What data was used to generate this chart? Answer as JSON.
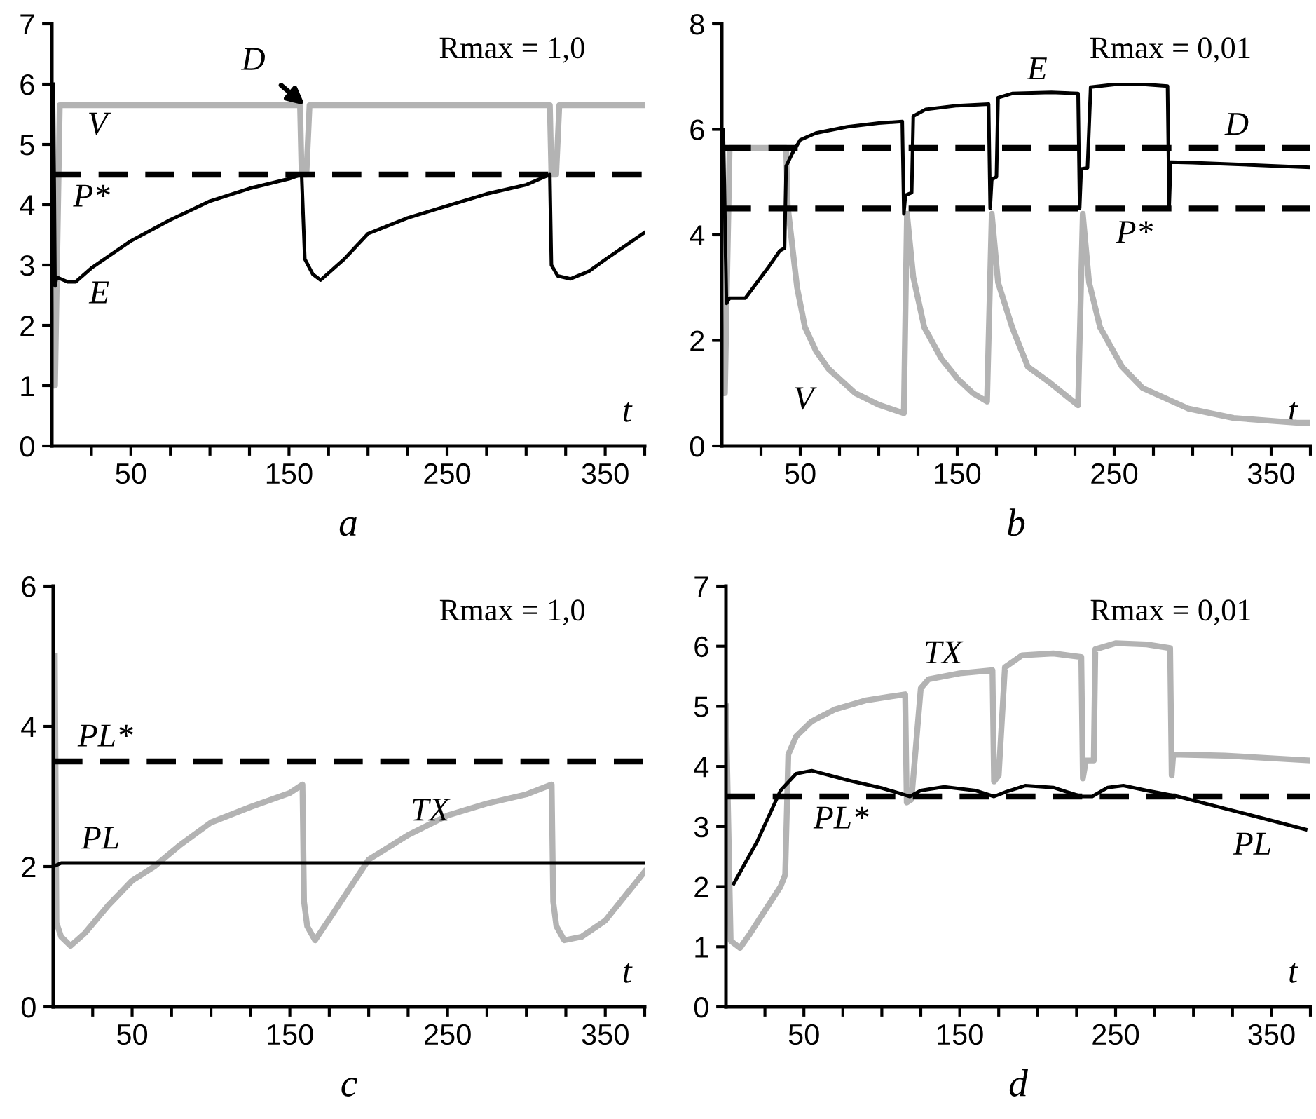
{
  "chart_data": [
    {
      "type": "line",
      "title": "a",
      "xlabel": "t",
      "xlim": [
        0,
        375
      ],
      "ylim": [
        0,
        7
      ],
      "xticks": [
        {
          "value": 25,
          "label": null
        },
        50,
        {
          "value": 75,
          "label": null
        },
        {
          "value": 100,
          "label": null
        },
        {
          "value": 125,
          "label": null
        },
        150,
        {
          "value": 175,
          "label": null
        },
        {
          "value": 200,
          "label": null
        },
        {
          "value": 225,
          "label": null
        },
        250,
        {
          "value": 275,
          "label": null
        },
        {
          "value": 300,
          "label": null
        },
        {
          "value": 325,
          "label": null
        },
        350,
        {
          "value": 375,
          "label": null
        }
      ],
      "yticks": [
        0,
        1,
        2,
        3,
        4,
        5,
        6,
        7
      ],
      "series": [
        {
          "name": "V",
          "color": "#b3b3b3",
          "x": [
            0,
            2,
            5,
            157,
            158,
            161,
            163,
            315,
            316,
            319,
            321,
            375
          ],
          "values": [
            1.0,
            1.0,
            5.65,
            5.65,
            4.5,
            4.5,
            5.65,
            5.65,
            4.5,
            4.5,
            5.65,
            5.65
          ]
        },
        {
          "name": "E",
          "color": "#000000",
          "x": [
            1,
            2,
            3,
            10,
            15,
            25,
            50,
            75,
            100,
            125,
            150,
            158,
            160,
            165,
            170,
            185,
            200,
            225,
            250,
            275,
            300,
            315,
            316,
            320,
            328,
            340,
            350,
            375
          ],
          "values": [
            6.0,
            2.65,
            2.8,
            2.72,
            2.72,
            2.95,
            3.4,
            3.75,
            4.06,
            4.27,
            4.43,
            4.5,
            3.1,
            2.85,
            2.75,
            3.1,
            3.52,
            3.78,
            3.98,
            4.18,
            4.33,
            4.5,
            3.0,
            2.82,
            2.77,
            2.9,
            3.09,
            3.54
          ]
        }
      ],
      "ref_lines": [
        {
          "axis": "y",
          "value": 4.5,
          "label": "P*",
          "color": "#000000",
          "line_style": "dashed"
        }
      ],
      "annotations": [
        "Rmax = 1,0",
        {
          "text": "D",
          "x": 160,
          "y": 5.65
        }
      ]
    },
    {
      "type": "line",
      "title": "b",
      "xlabel": "t",
      "xlim": [
        0,
        375
      ],
      "ylim": [
        0,
        8
      ],
      "xticks": [
        {
          "value": 25,
          "label": null
        },
        50,
        {
          "value": 75,
          "label": null
        },
        {
          "value": 100,
          "label": null
        },
        {
          "value": 125,
          "label": null
        },
        150,
        {
          "value": 175,
          "label": null
        },
        {
          "value": 200,
          "label": null
        },
        {
          "value": 225,
          "label": null
        },
        250,
        {
          "value": 275,
          "label": null
        },
        {
          "value": 300,
          "label": null
        },
        {
          "value": 325,
          "label": null
        },
        350,
        {
          "value": 375,
          "label": null
        }
      ],
      "yticks": [
        0,
        2,
        4,
        6,
        8
      ],
      "series": [
        {
          "name": "V",
          "color": "#b3b3b3",
          "x": [
            0,
            2,
            5,
            41,
            42,
            48,
            53,
            60,
            68,
            85,
            100,
            116,
            118,
            122,
            129,
            140,
            150,
            160,
            169,
            172,
            176,
            185,
            195,
            209,
            227,
            230,
            234,
            241,
            255,
            268,
            297,
            326,
            366,
            375
          ],
          "values": [
            1.0,
            1.0,
            5.65,
            5.65,
            4.55,
            3.0,
            2.25,
            1.8,
            1.46,
            1.0,
            0.78,
            0.62,
            4.4,
            3.2,
            2.25,
            1.65,
            1.28,
            1.0,
            0.84,
            4.4,
            3.1,
            2.25,
            1.5,
            1.2,
            0.77,
            4.4,
            3.1,
            2.25,
            1.5,
            1.1,
            0.71,
            0.53,
            0.44,
            0.44
          ]
        },
        {
          "name": "E",
          "color": "#000000",
          "x": [
            1,
            3,
            5,
            15,
            20,
            30,
            37,
            40,
            41,
            45,
            50,
            60,
            80,
            100,
            115,
            116,
            117,
            121,
            122,
            130,
            150,
            170,
            171,
            172,
            175,
            176,
            185,
            210,
            227,
            228,
            229,
            233,
            235,
            250,
            270,
            284,
            285,
            286,
            300,
            350,
            375
          ],
          "values": [
            6.0,
            2.7,
            2.8,
            2.8,
            3.0,
            3.4,
            3.7,
            3.75,
            5.3,
            5.55,
            5.8,
            5.93,
            6.05,
            6.12,
            6.15,
            4.4,
            4.75,
            4.8,
            6.25,
            6.38,
            6.45,
            6.48,
            4.5,
            5.05,
            5.1,
            6.6,
            6.68,
            6.7,
            6.68,
            4.5,
            5.25,
            5.27,
            6.8,
            6.85,
            6.85,
            6.82,
            4.5,
            5.38,
            5.37,
            5.31,
            5.28
          ]
        }
      ],
      "ref_lines": [
        {
          "axis": "y",
          "value": 5.65,
          "label": "D",
          "color": "#000000",
          "line_style": "dashed"
        },
        {
          "axis": "y",
          "value": 4.5,
          "label": "P*",
          "color": "#000000",
          "line_style": "dashed"
        }
      ],
      "annotations": [
        "Rmax = 0,01"
      ]
    },
    {
      "type": "line",
      "title": "c",
      "xlabel": "t",
      "xlim": [
        0,
        375
      ],
      "ylim": [
        0,
        6
      ],
      "xticks": [
        {
          "value": 25,
          "label": null
        },
        50,
        {
          "value": 75,
          "label": null
        },
        {
          "value": 100,
          "label": null
        },
        {
          "value": 125,
          "label": null
        },
        150,
        {
          "value": 175,
          "label": null
        },
        {
          "value": 200,
          "label": null
        },
        {
          "value": 225,
          "label": null
        },
        250,
        {
          "value": 275,
          "label": null
        },
        {
          "value": 300,
          "label": null
        },
        {
          "value": 325,
          "label": null
        },
        350,
        {
          "value": 375,
          "label": null
        }
      ],
      "yticks": [
        0,
        2,
        4,
        6
      ],
      "series": [
        {
          "name": "TX",
          "color": "#b3b3b3",
          "x": [
            1,
            2,
            5,
            11,
            20,
            35,
            50,
            64,
            80,
            100,
            125,
            150,
            158,
            159,
            161,
            166,
            175,
            200,
            225,
            250,
            275,
            300,
            316,
            317,
            319,
            324,
            335,
            350,
            375
          ],
          "values": [
            5.0,
            1.2,
            1.0,
            0.87,
            1.05,
            1.45,
            1.8,
            2.0,
            2.3,
            2.63,
            2.85,
            3.05,
            3.17,
            1.5,
            1.15,
            0.95,
            1.25,
            2.1,
            2.45,
            2.73,
            2.9,
            3.03,
            3.17,
            1.5,
            1.15,
            0.95,
            1.0,
            1.23,
            1.93
          ]
        },
        {
          "name": "PL",
          "color": "#000000",
          "x": [
            0,
            5,
            375
          ],
          "values": [
            2.0,
            2.05,
            2.05
          ]
        }
      ],
      "ref_lines": [
        {
          "axis": "y",
          "value": 3.5,
          "label": "PL*",
          "color": "#000000",
          "line_style": "dashed"
        }
      ],
      "annotations": [
        "Rmax = 1,0"
      ]
    },
    {
      "type": "line",
      "title": "d",
      "xlabel": "t",
      "xlim": [
        0,
        375
      ],
      "ylim": [
        0,
        7
      ],
      "xticks": [
        {
          "value": 25,
          "label": null
        },
        50,
        {
          "value": 75,
          "label": null
        },
        {
          "value": 100,
          "label": null
        },
        {
          "value": 125,
          "label": null
        },
        150,
        {
          "value": 175,
          "label": null
        },
        {
          "value": 200,
          "label": null
        },
        {
          "value": 225,
          "label": null
        },
        250,
        {
          "value": 275,
          "label": null
        },
        {
          "value": 300,
          "label": null
        },
        {
          "value": 325,
          "label": null
        },
        350,
        {
          "value": 375,
          "label": null
        }
      ],
      "yticks": [
        0,
        1,
        2,
        3,
        4,
        5,
        6,
        7
      ],
      "series": [
        {
          "name": "TX",
          "color": "#b3b3b3",
          "x": [
            0,
            3,
            9,
            15,
            25,
            35,
            38,
            40,
            45,
            55,
            70,
            90,
            115,
            116,
            119,
            125,
            130,
            150,
            171,
            172,
            175,
            179,
            190,
            210,
            228,
            229,
            231,
            236,
            237,
            250,
            270,
            285,
            286,
            287,
            320,
            375
          ],
          "values": [
            5.0,
            1.1,
            0.98,
            1.2,
            1.6,
            2.0,
            2.2,
            4.2,
            4.5,
            4.75,
            4.95,
            5.1,
            5.2,
            3.4,
            3.45,
            5.3,
            5.45,
            5.55,
            5.6,
            3.75,
            3.85,
            5.65,
            5.85,
            5.88,
            5.82,
            3.8,
            4.1,
            4.1,
            5.95,
            6.05,
            6.03,
            5.97,
            3.85,
            4.2,
            4.18,
            4.1
          ]
        },
        {
          "name": "PL",
          "color": "#000000",
          "x": [
            5,
            20,
            35,
            45,
            55,
            80,
            100,
            118,
            125,
            140,
            160,
            172,
            180,
            192,
            210,
            228,
            235,
            245,
            255,
            270,
            290,
            320,
            350,
            372
          ],
          "values": [
            2.05,
            2.75,
            3.6,
            3.88,
            3.93,
            3.76,
            3.64,
            3.5,
            3.6,
            3.66,
            3.6,
            3.5,
            3.58,
            3.68,
            3.65,
            3.5,
            3.5,
            3.65,
            3.68,
            3.6,
            3.5,
            3.3,
            3.1,
            2.95
          ]
        }
      ],
      "ref_lines": [
        {
          "axis": "y",
          "value": 3.5,
          "label": "PL*",
          "color": "#000000",
          "line_style": "dashed"
        }
      ],
      "annotations": [
        "Rmax = 0,01"
      ]
    }
  ]
}
